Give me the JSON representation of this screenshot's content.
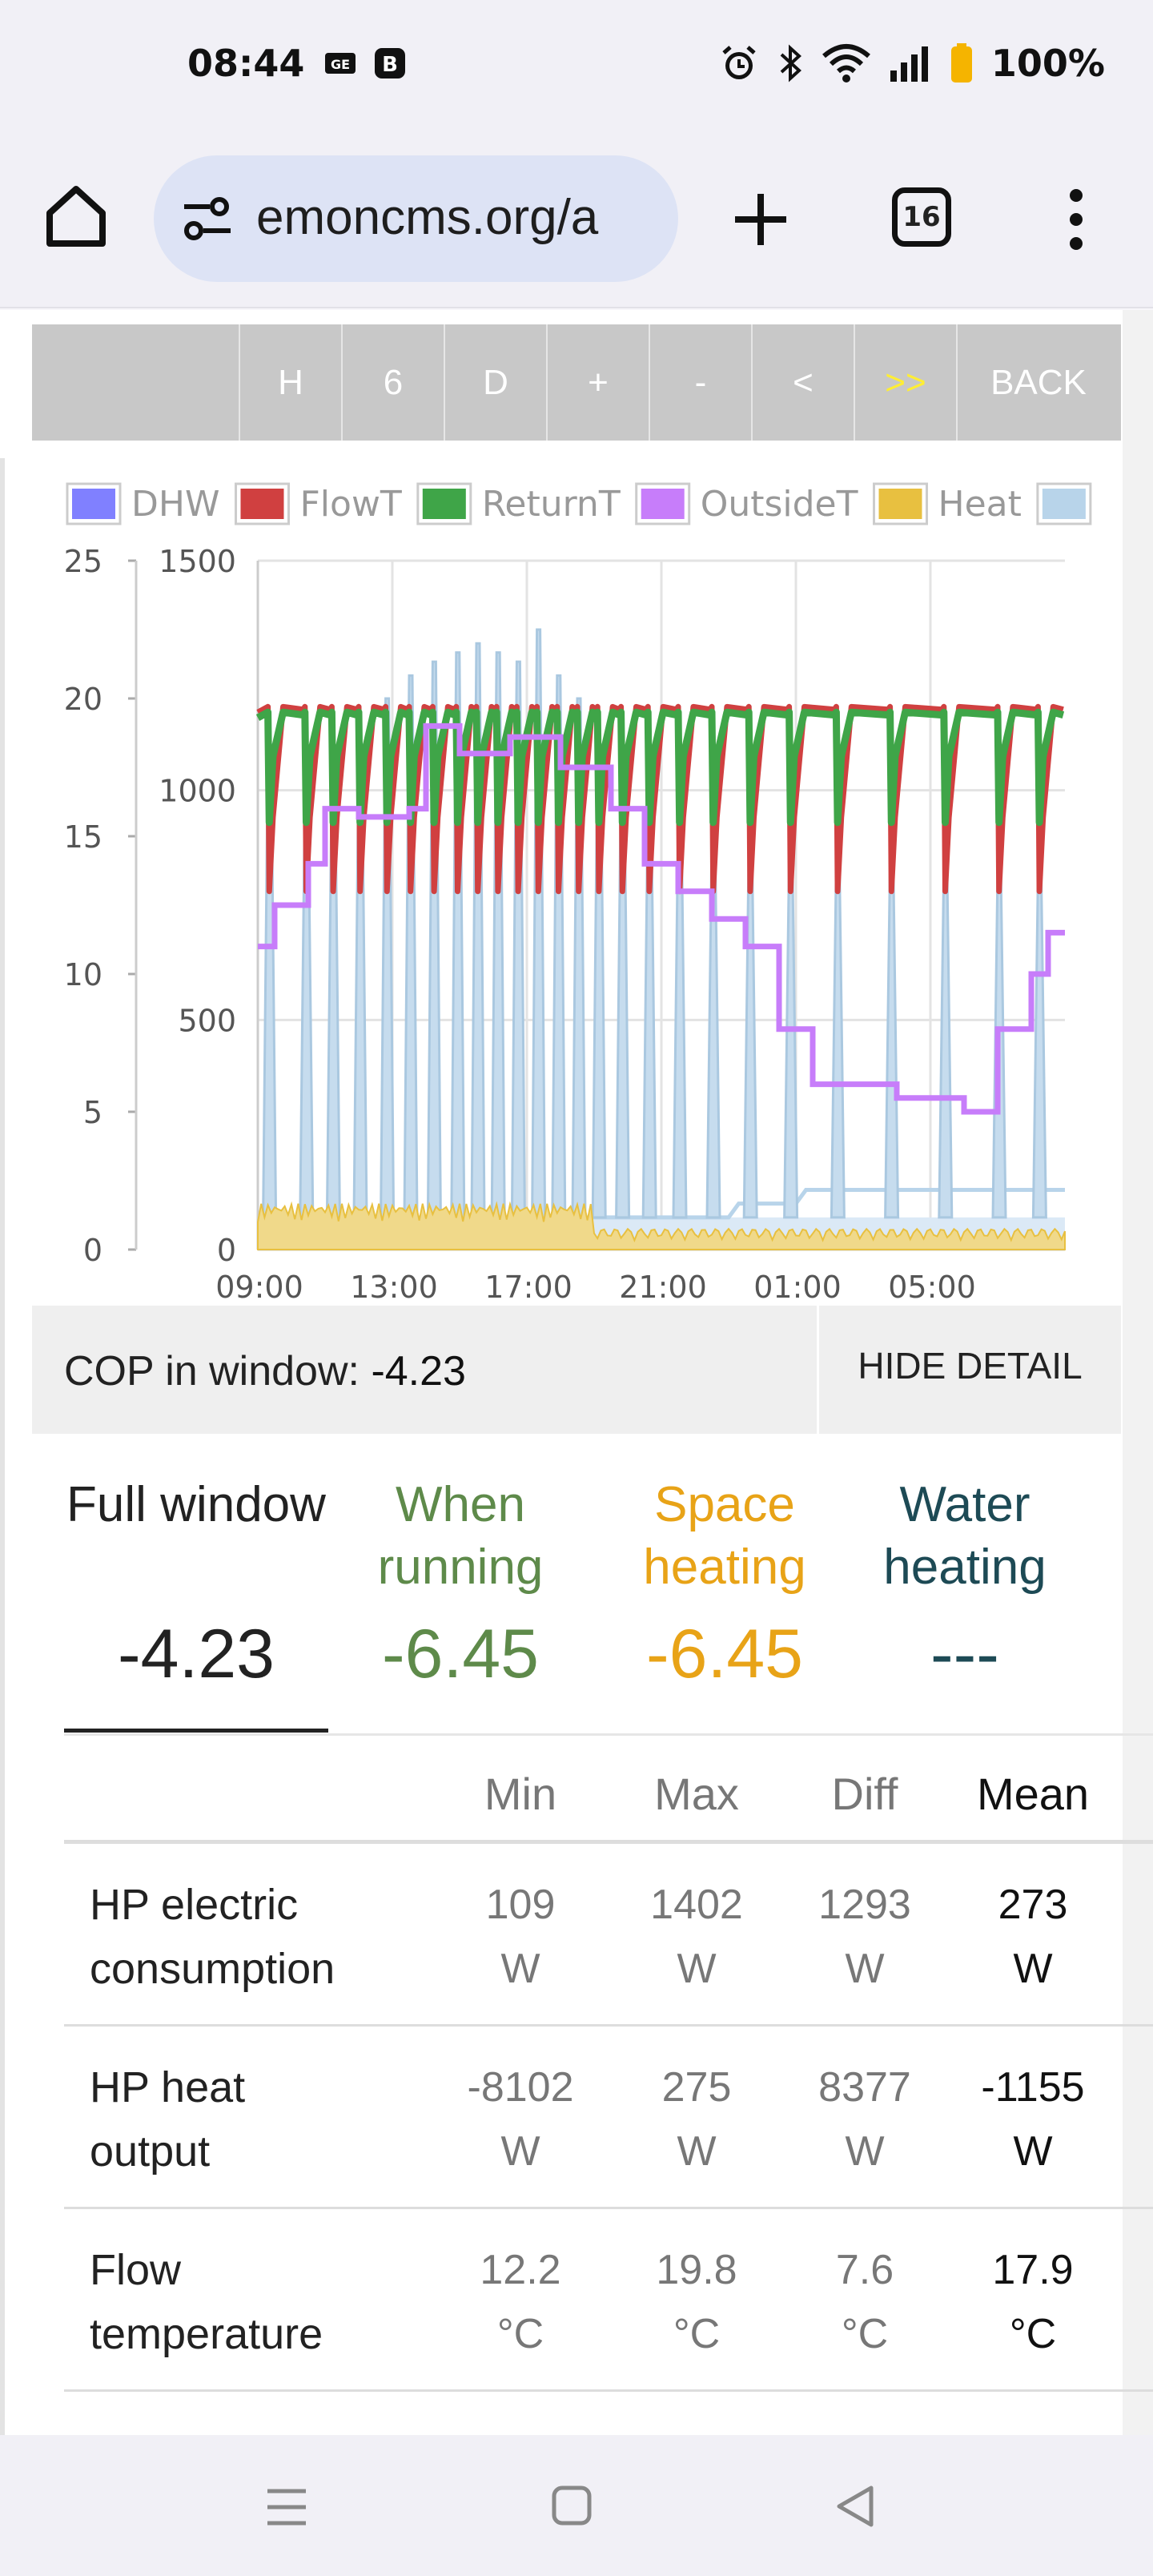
{
  "status_bar": {
    "time": "08:44",
    "battery": "100%"
  },
  "browser": {
    "url": "emoncms.org/a",
    "tab_count": "16"
  },
  "toolbar": {
    "buttons": [
      "H",
      "6",
      "D",
      "+",
      "-",
      "<",
      ">>",
      "BACK"
    ]
  },
  "chart_data": {
    "type": "line",
    "legend": [
      "DHW",
      "FlowT",
      "ReturnT",
      "OutsideT",
      "Heat"
    ],
    "x_ticks": [
      "09:00",
      "13:00",
      "17:00",
      "21:00",
      "01:00",
      "05:00"
    ],
    "y_left_ticks": [
      "0",
      "5",
      "10",
      "15",
      "20",
      "25"
    ],
    "y_right_ticks": [
      "0",
      "500",
      "1000",
      "1500"
    ],
    "y_left_range": [
      0,
      25
    ],
    "y_right_range": [
      0,
      1500
    ],
    "x_range_hours": [
      0,
      24
    ],
    "grid": true,
    "legend_position": "top",
    "series": [
      {
        "name": "OutsideT",
        "color": "#c77dfa",
        "axis": "left",
        "steps": [
          [
            0,
            11
          ],
          [
            0.5,
            12.5
          ],
          [
            1,
            12.5
          ],
          [
            1.5,
            14
          ],
          [
            2,
            16
          ],
          [
            3,
            15.7
          ],
          [
            4.5,
            16
          ],
          [
            5,
            19
          ],
          [
            6,
            18
          ],
          [
            7.5,
            18.6
          ],
          [
            9,
            17.5
          ],
          [
            10.5,
            16
          ],
          [
            11.5,
            14
          ],
          [
            12.5,
            13
          ],
          [
            13.5,
            12
          ],
          [
            14.5,
            11
          ],
          [
            15.5,
            8
          ],
          [
            16.5,
            6
          ],
          [
            18,
            6
          ],
          [
            19,
            5.5
          ],
          [
            21,
            5
          ],
          [
            22,
            8
          ],
          [
            23,
            10
          ],
          [
            23.5,
            11.5
          ],
          [
            24,
            11.5
          ]
        ]
      },
      {
        "name": "FlowT",
        "color": "#d04040",
        "axis": "left",
        "high": 19.7,
        "low": 13,
        "cycle_start_hours": [
          0.3,
          1.4,
          2.2,
          3.0,
          3.8,
          4.5,
          5.2,
          5.9,
          6.5,
          7.1,
          7.7,
          8.3,
          8.9,
          9.5,
          10.1,
          10.8,
          11.6,
          12.5,
          13.5,
          14.6,
          15.8,
          17.2,
          18.8,
          20.4,
          22.0,
          23.2
        ]
      },
      {
        "name": "ReturnT",
        "color": "#3fa548",
        "axis": "left",
        "high": 19.5,
        "low": 15.5
      },
      {
        "name": "Heat",
        "color": "#e8c040",
        "axis": "right",
        "note": "noisy band near 0-150 W"
      },
      {
        "name": "Electric",
        "color": "#b8d4ea",
        "axis": "right",
        "cycle_peak_watts": [
          1100,
          1000,
          1050,
          1100,
          1200,
          1250,
          1280,
          1300,
          1320,
          1300,
          1280,
          1350,
          1250,
          1200,
          1100,
          1050,
          1000,
          950,
          900,
          880,
          860,
          850,
          850,
          840,
          830,
          820
        ]
      }
    ]
  },
  "cop": {
    "label": "COP in window:",
    "value": "-4.23",
    "hide_label": "HIDE DETAIL"
  },
  "modes": [
    {
      "name": "Full window",
      "value": "-4.23",
      "color": "#222222"
    },
    {
      "name": "When running",
      "value": "-6.45",
      "color": "#5e8a4a"
    },
    {
      "name": "Space heating",
      "value": "-6.45",
      "color": "#e8a317"
    },
    {
      "name": "Water heating",
      "value": "---",
      "color": "#1d4a55"
    }
  ],
  "stats": {
    "headers": [
      "Min",
      "Max",
      "Diff",
      "Mean"
    ],
    "rows": [
      {
        "label": [
          "HP electric",
          "consumption"
        ],
        "min": [
          "109",
          "W"
        ],
        "max": [
          "1402",
          "W"
        ],
        "diff": [
          "1293",
          "W"
        ],
        "mean": [
          "273",
          "W"
        ]
      },
      {
        "label": [
          "HP heat",
          "output"
        ],
        "min": [
          "-8102",
          "W"
        ],
        "max": [
          "275",
          "W"
        ],
        "diff": [
          "8377",
          "W"
        ],
        "mean": [
          "-1155",
          "W"
        ]
      },
      {
        "label": [
          "Flow",
          "temperature"
        ],
        "min": [
          "12.2",
          "°C"
        ],
        "max": [
          "19.8",
          "°C"
        ],
        "diff": [
          "7.6",
          "°C"
        ],
        "mean": [
          "17.9",
          "°C"
        ]
      }
    ]
  }
}
